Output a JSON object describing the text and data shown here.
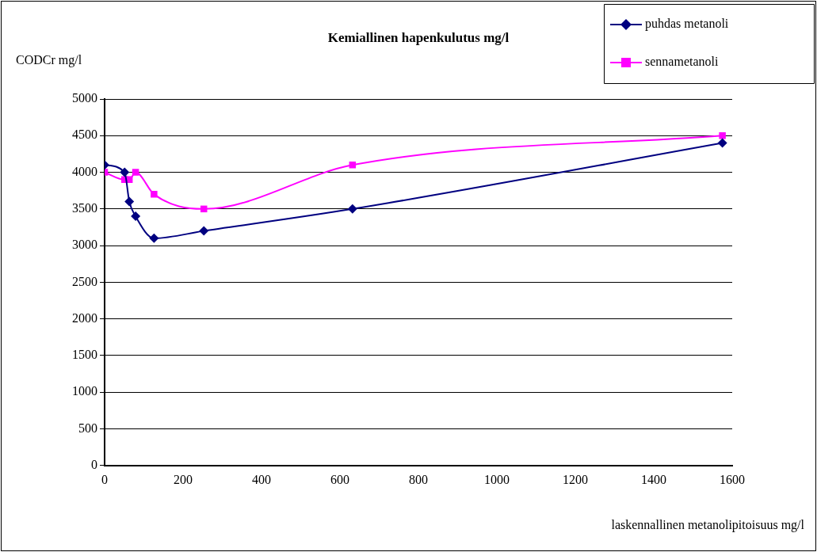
{
  "chart_data": {
    "type": "line",
    "title": "Kemiallinen hapenkulutus mg/l",
    "xlabel": "laskennallinen metanolipitoisuus mg/l",
    "ylabel": "CODCr mg/l",
    "x": [
      0,
      51,
      63,
      79,
      126,
      253,
      632,
      1575
    ],
    "series": [
      {
        "name": "puhdas metanoli",
        "color": "#000080",
        "marker": "diamond",
        "values": [
          4100,
          4000,
          3600,
          3400,
          3100,
          3200,
          3500,
          4400
        ]
      },
      {
        "name": "sennametanoli",
        "color": "#ff00ff",
        "marker": "square",
        "values": [
          4000,
          3900,
          3900,
          4000,
          3700,
          3500,
          4100,
          4500
        ]
      }
    ],
    "xlim": [
      0,
      1600
    ],
    "xticks": [
      0,
      200,
      400,
      600,
      800,
      1000,
      1200,
      1400,
      1600
    ],
    "ylim": [
      0,
      5000
    ],
    "yticks": [
      0,
      500,
      1000,
      1500,
      2000,
      2500,
      3000,
      3500,
      4000,
      4500,
      5000
    ],
    "grid": "y",
    "legend": "top right",
    "line_style": "solid"
  }
}
